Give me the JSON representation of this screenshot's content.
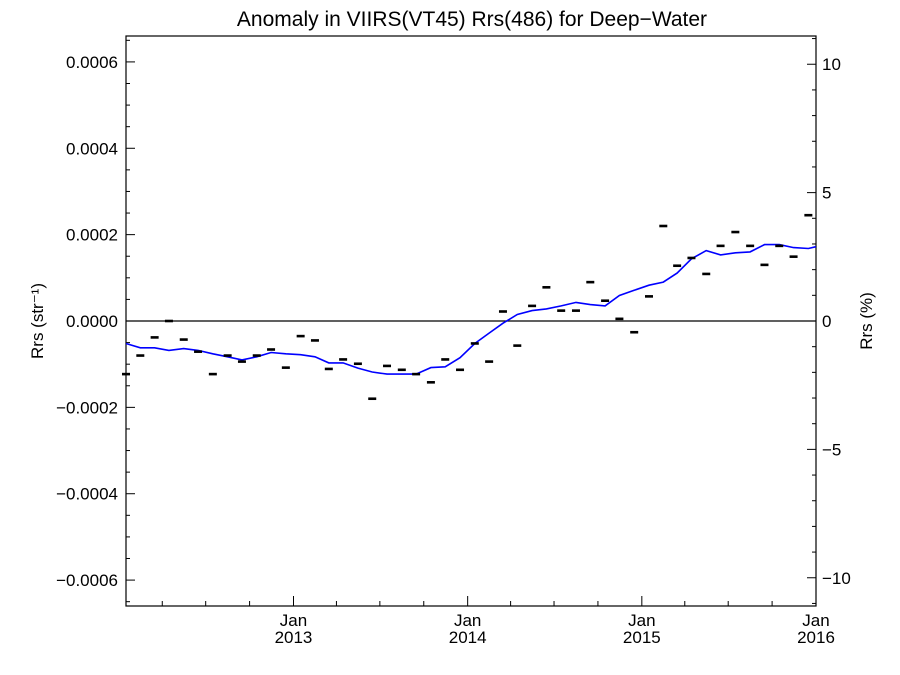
{
  "chart_data": {
    "type": "scatter",
    "title": "Anomaly in VIIRS(VT45) Rrs(486) for Deep−Water",
    "ylabel": "Rrs (str⁻¹)",
    "ylabel_right": "Rrs (%)",
    "xlabel": "",
    "x_range": [
      "2012-01-16",
      "2016-01-01"
    ],
    "ylim": [
      -0.00066,
      0.00066
    ],
    "ylim_right": [
      -11.1,
      11.1
    ],
    "y_ticks": [
      {
        "value": 0.0006,
        "label": "0.0006"
      },
      {
        "value": 0.0004,
        "label": "0.0004"
      },
      {
        "value": 0.0002,
        "label": "0.0002"
      },
      {
        "value": 0.0,
        "label": "0.0000"
      },
      {
        "value": -0.0002,
        "label": "−0.0002"
      },
      {
        "value": -0.0004,
        "label": "−0.0004"
      },
      {
        "value": -0.0006,
        "label": "−0.0006"
      }
    ],
    "y_ticks_right": [
      {
        "value": 10,
        "label": "10"
      },
      {
        "value": 5,
        "label": "5"
      },
      {
        "value": 0,
        "label": "0"
      },
      {
        "value": -5,
        "label": "−5"
      },
      {
        "value": -10,
        "label": "−10"
      }
    ],
    "x_ticks": [
      {
        "date": "2013-01-01",
        "month": "Jan",
        "year": "2013"
      },
      {
        "date": "2014-01-01",
        "month": "Jan",
        "year": "2014"
      },
      {
        "date": "2015-01-01",
        "month": "Jan",
        "year": "2015"
      },
      {
        "date": "2016-01-01",
        "month": "Jan",
        "year": "2016"
      }
    ],
    "zero_line": true,
    "grid": false,
    "series": [
      {
        "marker": "dash",
        "color": "#000000",
        "points": [
          {
            "x": "2012-01-16",
            "y": -0.000123
          },
          {
            "x": "2012-02-15",
            "y": -8e-05
          },
          {
            "x": "2012-03-16",
            "y": -3.8e-05
          },
          {
            "x": "2012-04-15",
            "y": 0.0
          },
          {
            "x": "2012-05-16",
            "y": -4.3e-05
          },
          {
            "x": "2012-06-15",
            "y": -7.1e-05
          },
          {
            "x": "2012-07-16",
            "y": -0.000123
          },
          {
            "x": "2012-08-16",
            "y": -8e-05
          },
          {
            "x": "2012-09-15",
            "y": -9.4e-05
          },
          {
            "x": "2012-10-16",
            "y": -8e-05
          },
          {
            "x": "2012-11-15",
            "y": -6.6e-05
          },
          {
            "x": "2012-12-16",
            "y": -0.000108
          },
          {
            "x": "2013-01-16",
            "y": -3.5e-05
          },
          {
            "x": "2013-02-15",
            "y": -4.5e-05
          },
          {
            "x": "2013-03-16",
            "y": -0.000111
          },
          {
            "x": "2013-04-15",
            "y": -8.9e-05
          },
          {
            "x": "2013-05-16",
            "y": -9.9e-05
          },
          {
            "x": "2013-06-15",
            "y": -0.00018
          },
          {
            "x": "2013-07-16",
            "y": -0.000104
          },
          {
            "x": "2013-08-16",
            "y": -0.000113
          },
          {
            "x": "2013-09-15",
            "y": -0.000123
          },
          {
            "x": "2013-10-16",
            "y": -0.000142
          },
          {
            "x": "2013-11-15",
            "y": -8.9e-05
          },
          {
            "x": "2013-12-16",
            "y": -0.000113
          },
          {
            "x": "2014-01-16",
            "y": -5.2e-05
          },
          {
            "x": "2014-02-15",
            "y": -9.4e-05
          },
          {
            "x": "2014-03-16",
            "y": 2.2e-05
          },
          {
            "x": "2014-04-15",
            "y": -5.7e-05
          },
          {
            "x": "2014-05-16",
            "y": 3.5e-05
          },
          {
            "x": "2014-06-15",
            "y": 7.8e-05
          },
          {
            "x": "2014-07-16",
            "y": 2.4e-05
          },
          {
            "x": "2014-08-16",
            "y": 2.4e-05
          },
          {
            "x": "2014-09-15",
            "y": 9e-05
          },
          {
            "x": "2014-10-16",
            "y": 4.7e-05
          },
          {
            "x": "2014-11-15",
            "y": 5e-06
          },
          {
            "x": "2014-12-16",
            "y": -2.6e-05
          },
          {
            "x": "2015-01-16",
            "y": 5.7e-05
          },
          {
            "x": "2015-02-15",
            "y": 0.00022
          },
          {
            "x": "2015-03-16",
            "y": 0.000128
          },
          {
            "x": "2015-04-15",
            "y": 0.000146
          },
          {
            "x": "2015-05-16",
            "y": 0.000109
          },
          {
            "x": "2015-06-15",
            "y": 0.000174
          },
          {
            "x": "2015-07-16",
            "y": 0.000206
          },
          {
            "x": "2015-08-16",
            "y": 0.000174
          },
          {
            "x": "2015-09-15",
            "y": 0.00013
          },
          {
            "x": "2015-10-16",
            "y": 0.000174
          },
          {
            "x": "2015-11-15",
            "y": 0.000149
          },
          {
            "x": "2015-12-16",
            "y": 0.000245
          }
        ]
      },
      {
        "marker": "line",
        "color": "#0000ff",
        "points": [
          {
            "x": "2012-01-16",
            "y": -5.2e-05
          },
          {
            "x": "2012-02-15",
            "y": -6.2e-05
          },
          {
            "x": "2012-03-16",
            "y": -6.2e-05
          },
          {
            "x": "2012-04-15",
            "y": -6.8e-05
          },
          {
            "x": "2012-05-16",
            "y": -6.4e-05
          },
          {
            "x": "2012-06-15",
            "y": -6.8e-05
          },
          {
            "x": "2012-07-16",
            "y": -7.6e-05
          },
          {
            "x": "2012-08-16",
            "y": -8.3e-05
          },
          {
            "x": "2012-09-15",
            "y": -9e-05
          },
          {
            "x": "2012-10-16",
            "y": -8.3e-05
          },
          {
            "x": "2012-11-15",
            "y": -7.3e-05
          },
          {
            "x": "2012-12-16",
            "y": -7.6e-05
          },
          {
            "x": "2013-01-16",
            "y": -7.8e-05
          },
          {
            "x": "2013-02-15",
            "y": -8.3e-05
          },
          {
            "x": "2013-03-16",
            "y": -9.7e-05
          },
          {
            "x": "2013-04-15",
            "y": -9.7e-05
          },
          {
            "x": "2013-05-16",
            "y": -0.000109
          },
          {
            "x": "2013-06-15",
            "y": -0.000118
          },
          {
            "x": "2013-07-16",
            "y": -0.000123
          },
          {
            "x": "2013-08-16",
            "y": -0.000123
          },
          {
            "x": "2013-09-15",
            "y": -0.000123
          },
          {
            "x": "2013-10-16",
            "y": -0.000108
          },
          {
            "x": "2013-11-15",
            "y": -0.000106
          },
          {
            "x": "2013-12-16",
            "y": -8.5e-05
          },
          {
            "x": "2014-01-16",
            "y": -5.2e-05
          },
          {
            "x": "2014-02-15",
            "y": -2.8e-05
          },
          {
            "x": "2014-03-16",
            "y": -5e-06
          },
          {
            "x": "2014-04-15",
            "y": 1.5e-05
          },
          {
            "x": "2014-05-16",
            "y": 2.4e-05
          },
          {
            "x": "2014-06-15",
            "y": 2.8e-05
          },
          {
            "x": "2014-07-16",
            "y": 3.5e-05
          },
          {
            "x": "2014-08-16",
            "y": 4.3e-05
          },
          {
            "x": "2014-09-15",
            "y": 3.8e-05
          },
          {
            "x": "2014-10-16",
            "y": 3.5e-05
          },
          {
            "x": "2014-11-15",
            "y": 5.9e-05
          },
          {
            "x": "2014-12-16",
            "y": 7.1e-05
          },
          {
            "x": "2015-01-16",
            "y": 8.3e-05
          },
          {
            "x": "2015-02-15",
            "y": 9e-05
          },
          {
            "x": "2015-03-16",
            "y": 0.000111
          },
          {
            "x": "2015-04-15",
            "y": 0.000144
          },
          {
            "x": "2015-05-16",
            "y": 0.000163
          },
          {
            "x": "2015-06-15",
            "y": 0.000153
          },
          {
            "x": "2015-07-16",
            "y": 0.000158
          },
          {
            "x": "2015-08-16",
            "y": 0.00016
          },
          {
            "x": "2015-09-15",
            "y": 0.000177
          },
          {
            "x": "2015-10-16",
            "y": 0.000177
          },
          {
            "x": "2015-11-15",
            "y": 0.00017
          },
          {
            "x": "2015-12-16",
            "y": 0.000168
          },
          {
            "x": "2016-01-01",
            "y": 0.000172
          }
        ]
      }
    ]
  }
}
